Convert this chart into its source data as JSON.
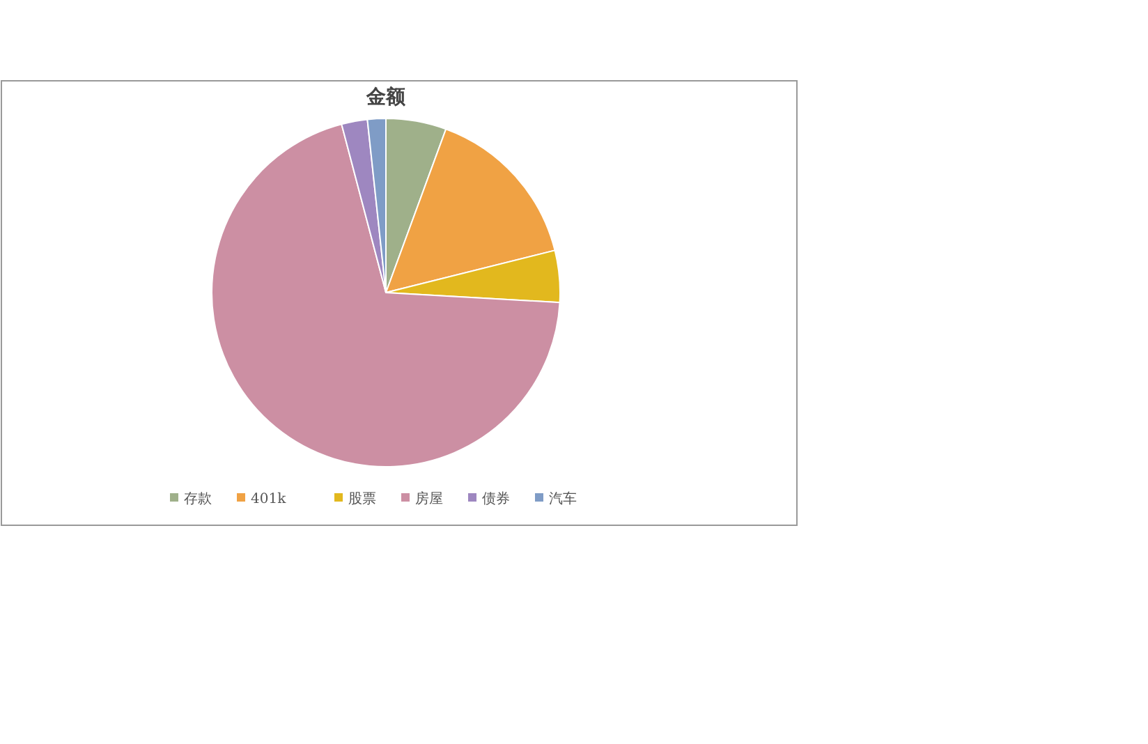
{
  "chart_data": {
    "type": "pie",
    "title": "金额",
    "categories": [
      "存款",
      "401k",
      "股票",
      "房屋",
      "债券",
      "汽车"
    ],
    "values": [
      5.6,
      15.5,
      4.8,
      70,
      2.4,
      1.7
    ],
    "colors": [
      "#9fb08a",
      "#f0a244",
      "#e2b81e",
      "#cc8fa3",
      "#9e87c0",
      "#7f9cc6"
    ],
    "legend": "bottom"
  }
}
